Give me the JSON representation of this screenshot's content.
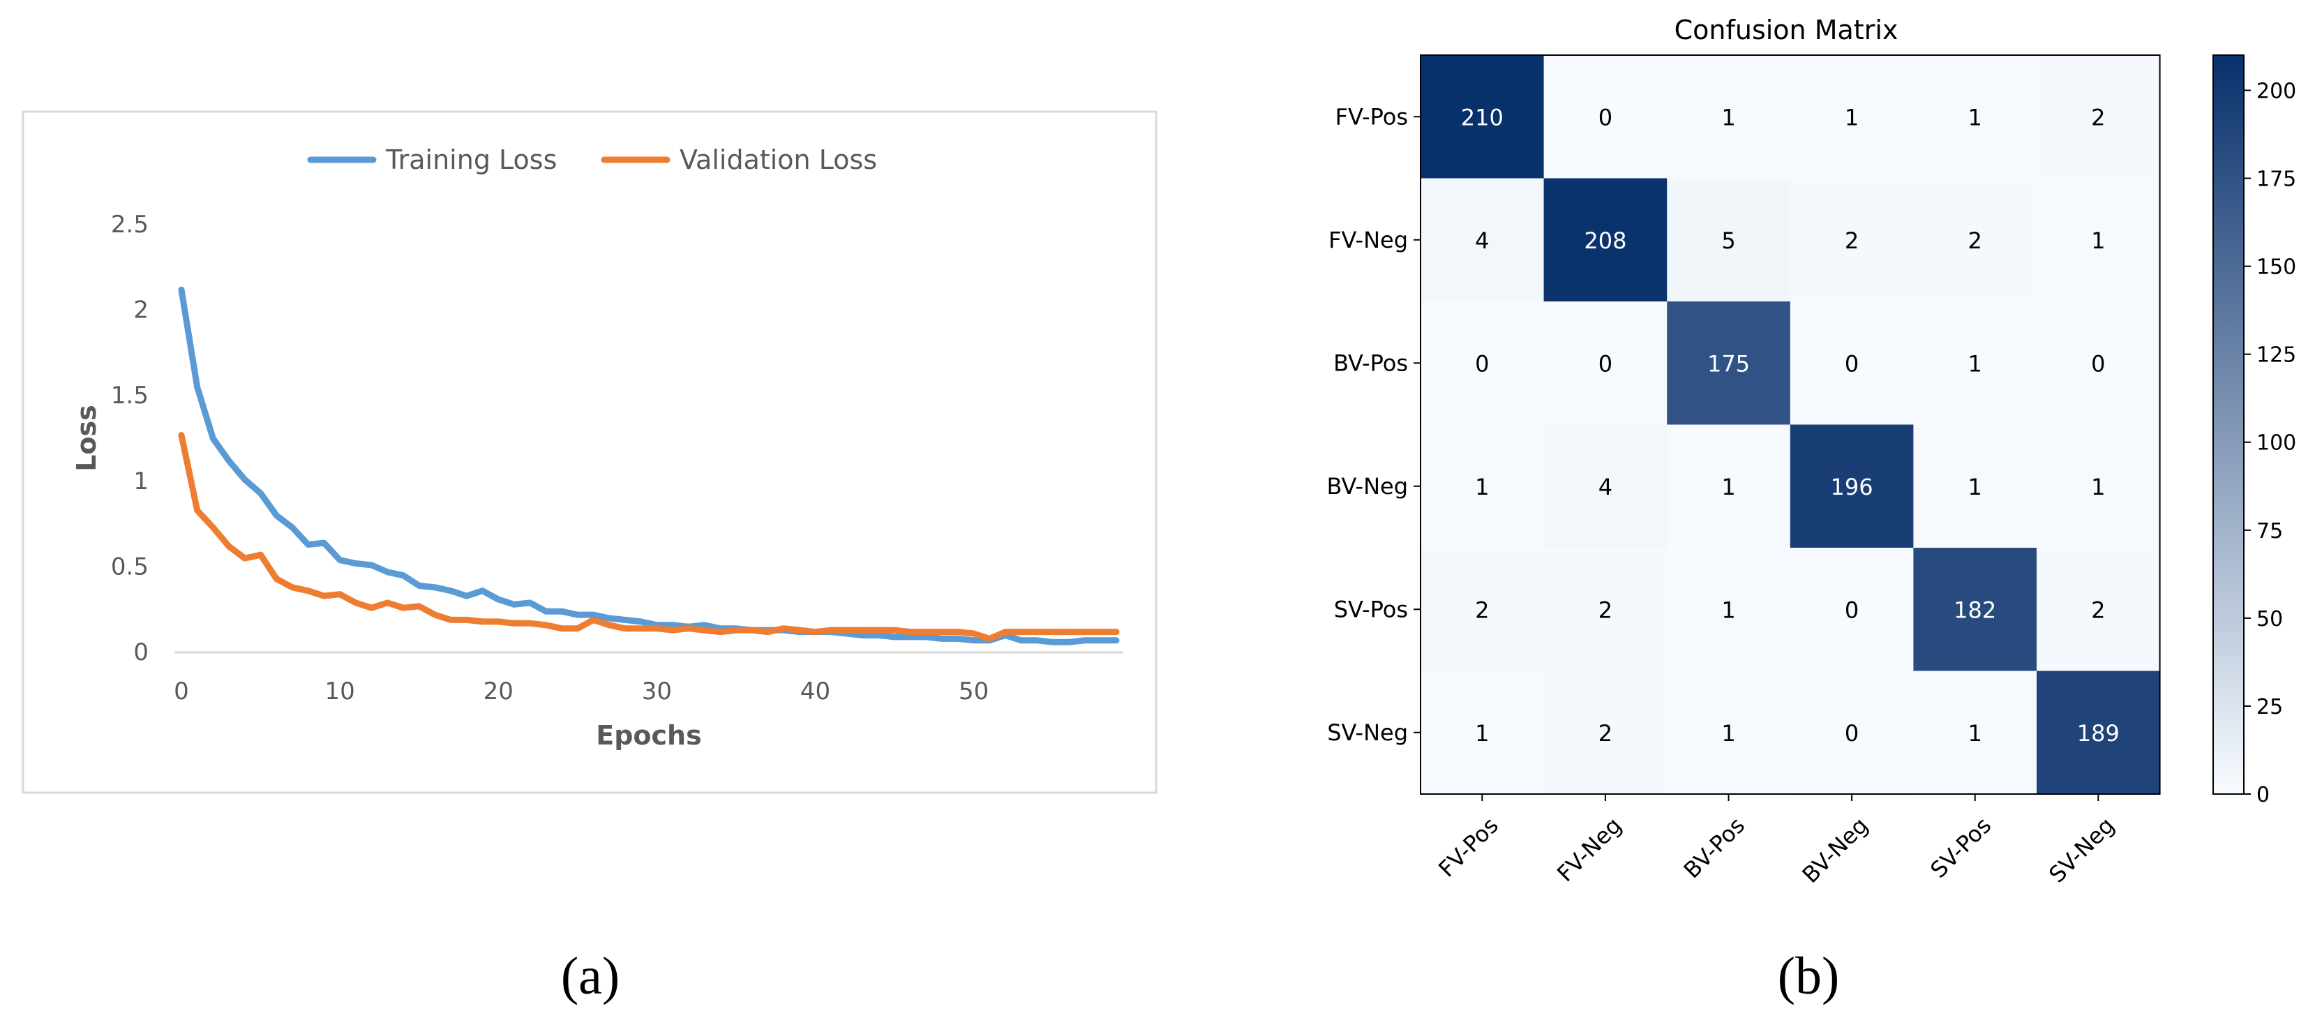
{
  "panel_labels": {
    "a": "(a)",
    "b": "(b)"
  },
  "chart_data": [
    {
      "type": "line",
      "title": "",
      "xlabel": "Epochs",
      "ylabel": "Loss",
      "xlim": [
        0,
        59
      ],
      "ylim": [
        0,
        2.5
      ],
      "x_ticks": [
        "0",
        "10",
        "20",
        "30",
        "40",
        "50"
      ],
      "y_ticks": [
        "0",
        "0.5",
        "1",
        "1.5",
        "2",
        "2.5"
      ],
      "grid": false,
      "legend_position": "top",
      "series": [
        {
          "name": "Training Loss",
          "color": "#5b9bd5",
          "values": [
            2.12,
            1.55,
            1.25,
            1.12,
            1.01,
            0.93,
            0.8,
            0.73,
            0.63,
            0.64,
            0.54,
            0.52,
            0.51,
            0.47,
            0.45,
            0.39,
            0.38,
            0.36,
            0.33,
            0.36,
            0.31,
            0.28,
            0.29,
            0.24,
            0.24,
            0.22,
            0.22,
            0.2,
            0.19,
            0.18,
            0.16,
            0.16,
            0.15,
            0.16,
            0.14,
            0.14,
            0.13,
            0.13,
            0.13,
            0.12,
            0.12,
            0.12,
            0.11,
            0.1,
            0.1,
            0.09,
            0.09,
            0.09,
            0.08,
            0.08,
            0.07,
            0.07,
            0.1,
            0.07,
            0.07,
            0.06,
            0.06,
            0.07,
            0.07,
            0.07
          ]
        },
        {
          "name": "Validation Loss",
          "color": "#ed7d31",
          "values": [
            1.27,
            0.83,
            0.73,
            0.62,
            0.55,
            0.57,
            0.43,
            0.38,
            0.36,
            0.33,
            0.34,
            0.29,
            0.26,
            0.29,
            0.26,
            0.27,
            0.22,
            0.19,
            0.19,
            0.18,
            0.18,
            0.17,
            0.17,
            0.16,
            0.14,
            0.14,
            0.19,
            0.16,
            0.14,
            0.14,
            0.14,
            0.13,
            0.14,
            0.13,
            0.12,
            0.13,
            0.13,
            0.12,
            0.14,
            0.13,
            0.12,
            0.13,
            0.13,
            0.13,
            0.13,
            0.13,
            0.12,
            0.12,
            0.12,
            0.12,
            0.11,
            0.08,
            0.12,
            0.12,
            0.12,
            0.12,
            0.12,
            0.12,
            0.12,
            0.12
          ]
        }
      ]
    },
    {
      "type": "heatmap",
      "title": "Confusion Matrix",
      "row_labels": [
        "FV-Pos",
        "FV-Neg",
        "BV-Pos",
        "BV-Neg",
        "SV-Pos",
        "SV-Neg"
      ],
      "col_labels": [
        "FV-Pos",
        "FV-Neg",
        "BV-Pos",
        "BV-Neg",
        "SV-Pos",
        "SV-Neg"
      ],
      "values": [
        [
          210,
          0,
          1,
          1,
          1,
          2
        ],
        [
          4,
          208,
          5,
          2,
          2,
          1
        ],
        [
          0,
          0,
          175,
          0,
          1,
          0
        ],
        [
          1,
          4,
          1,
          196,
          1,
          1
        ],
        [
          2,
          2,
          1,
          0,
          182,
          2
        ],
        [
          1,
          2,
          1,
          0,
          1,
          189
        ]
      ],
      "colormap": "Blues",
      "colorbar_range": [
        0,
        210
      ],
      "colorbar_ticks": [
        "0",
        "25",
        "50",
        "75",
        "100",
        "125",
        "150",
        "175",
        "200"
      ]
    }
  ]
}
